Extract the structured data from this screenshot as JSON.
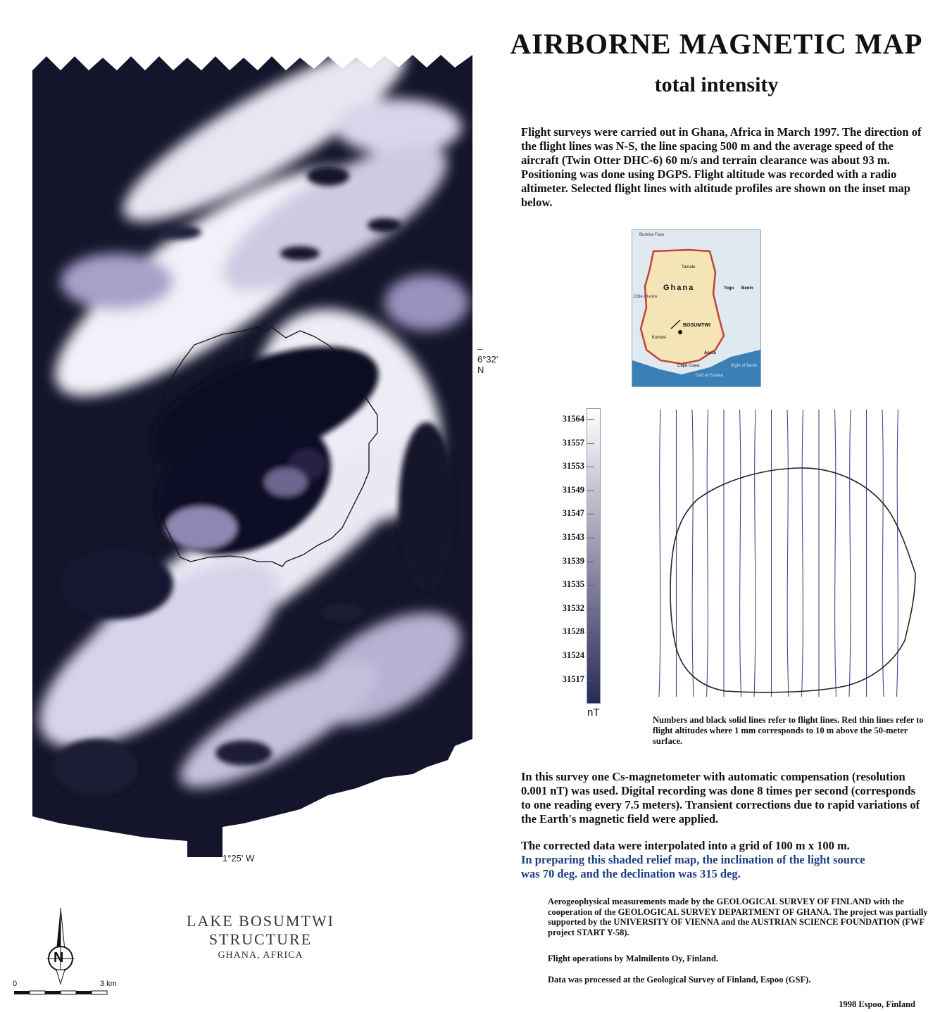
{
  "header": {
    "title": "AIRBORNE MAGNETIC MAP",
    "subtitle": "total intensity"
  },
  "intro_text": "Flight surveys were carried out in Ghana, Africa in March 1997. The direction of the flight lines was N-S, the line spacing 500 m and the average speed of the aircraft (Twin Otter DHC-6) 60 m/s and terrain clearance was about 93 m. Positioning was done using DGPS. Flight altitude was recorded with a radio altimeter. Selected flight lines with altitude profiles are shown on the inset map below.",
  "map": {
    "lat_label": "6°32' N",
    "lon_label": "1°25' W"
  },
  "inset": {
    "country_label": "Ghana",
    "site_label": "BOSUMTWI",
    "places": [
      "Burkina Faso",
      "Côte d'Ivoire",
      "Togo",
      "Benin",
      "Kumasi",
      "Accra",
      "Tamale",
      "Cape Coast",
      "Gulf of Guinea",
      "Bight of Benin"
    ]
  },
  "color_scale": {
    "values": [
      "31564",
      "31557",
      "31553",
      "31549",
      "31547",
      "31543",
      "31539",
      "31535",
      "31532",
      "31528",
      "31524",
      "31517"
    ],
    "unit": "nT",
    "colors": [
      "#ffffff",
      "#2a2a5a"
    ]
  },
  "flight_lines": {
    "count": 16,
    "caption": "Numbers and black solid lines refer to flight lines. Red thin lines refer to flight altitudes where 1 mm corresponds to 10 m above the 50-meter surface."
  },
  "survey_text": "In this survey one Cs-magnetometer with automatic compensation (resolution 0.001 nT) was used. Digital recording was done 8 times per second (corresponds to one reading every 7.5 meters). Transient corrections due to rapid variations of the Earth's magnetic field were applied.",
  "grid_text": {
    "line1": "The corrected data were interpolated into a grid of 100 m  x 100 m.",
    "line2": "In preparing this shaded relief map, the inclination of the light source",
    "line3": "was 70 deg. and the declination was 315 deg."
  },
  "credits": {
    "text": "Aerogeophysical measurements made by the GEOLOGICAL SURVEY OF FINLAND with the cooperation of the GEOLOGICAL SURVEY DEPARTMENT OF GHANA. The project was partially supported by the UNIVERSITY OF VIENNA and the AUSTRIAN SCIENCE FOUNDATION (FWF project START Y-58).",
    "operations": "Flight operations by Malmilento Oy, Finland.",
    "processed": "Data was processed at the Geological Survey of Finland, Espoo (GSF).",
    "place_date": "1998 Espoo, Finland"
  },
  "structure": {
    "title": "LAKE BOSUMTWI STRUCTURE",
    "subtitle": "GHANA, AFRICA"
  },
  "north_label": "N",
  "scale_km": {
    "start": "0",
    "end": "3 km"
  }
}
